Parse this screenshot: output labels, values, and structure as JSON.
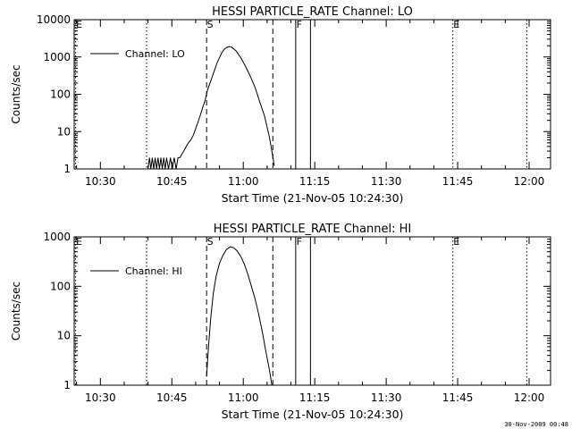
{
  "footer_timestamp": "30-Nov-2009 00:48",
  "chart_data": [
    {
      "type": "line",
      "title": "HESSI PARTICLE_RATE Channel: LO",
      "xlabel": "Start Time (21-Nov-05 10:24:30)",
      "ylabel": "Counts/sec",
      "y_scale": "log",
      "xlim_minutes": [
        0,
        100
      ],
      "ylim": [
        1,
        10000
      ],
      "x_ticks": [
        {
          "label": "10:30",
          "value": 5.5
        },
        {
          "label": "10:45",
          "value": 20.5
        },
        {
          "label": "11:00",
          "value": 35.5
        },
        {
          "label": "11:15",
          "value": 50.5
        },
        {
          "label": "11:30",
          "value": 65.5
        },
        {
          "label": "11:45",
          "value": 80.5
        },
        {
          "label": "12:00",
          "value": 95.5
        }
      ],
      "y_ticks": [
        {
          "label": "1",
          "value": 1
        },
        {
          "label": "10",
          "value": 10
        },
        {
          "label": "100",
          "value": 100
        },
        {
          "label": "1000",
          "value": 1000
        },
        {
          "label": "10000",
          "value": 10000
        }
      ],
      "legend": {
        "label": "Channel: LO",
        "placement": "top-left"
      },
      "markers": [
        {
          "label": "E",
          "x": 0.3,
          "style": "dotted"
        },
        {
          "label": "",
          "x": 15.2,
          "style": "dotted"
        },
        {
          "label": "S",
          "x": 27.8,
          "style": "dashed"
        },
        {
          "label": "",
          "x": 41.7,
          "style": "dashed"
        },
        {
          "label": "F",
          "x": 46.5,
          "style": "solid"
        },
        {
          "label": "",
          "x": 49.6,
          "style": "solid"
        },
        {
          "label": "E",
          "x": 79.5,
          "style": "dotted"
        },
        {
          "label": "",
          "x": 95.0,
          "style": "dotted"
        }
      ],
      "series": [
        {
          "name": "Channel: LO",
          "x": [
            15.5,
            15.8,
            16.1,
            16.4,
            16.7,
            17.0,
            17.3,
            17.6,
            17.9,
            18.2,
            18.5,
            18.8,
            19.1,
            19.4,
            19.8,
            20.2,
            20.6,
            21.0,
            21.4,
            21.8,
            22.2,
            22.6,
            23.0,
            23.5,
            24.0,
            24.5,
            25.0,
            25.5,
            26.0,
            26.5,
            27.0,
            27.5,
            28.0,
            29.0,
            30.0,
            31.0,
            31.5,
            32.0,
            32.5,
            33.0,
            34.0,
            35.0,
            36.0,
            37.0,
            38.0,
            39.0,
            40.0,
            41.0,
            41.5,
            42.0
          ],
          "y": [
            1,
            2,
            1,
            2,
            1,
            2,
            1,
            2,
            1,
            2,
            1,
            2,
            1,
            2,
            1,
            2,
            1,
            2,
            1,
            2,
            2,
            2.5,
            3,
            4,
            5,
            6,
            8,
            12,
            18,
            28,
            45,
            70,
            130,
            300,
            700,
            1300,
            1600,
            1800,
            1900,
            1850,
            1450,
            950,
            550,
            300,
            150,
            60,
            25,
            7,
            3,
            1.2
          ]
        }
      ]
    },
    {
      "type": "line",
      "title": "HESSI PARTICLE_RATE Channel: HI",
      "xlabel": "Start Time (21-Nov-05 10:24:30)",
      "ylabel": "Counts/sec",
      "y_scale": "log",
      "xlim_minutes": [
        0,
        100
      ],
      "ylim": [
        1,
        1000
      ],
      "x_ticks": [
        {
          "label": "10:30",
          "value": 5.5
        },
        {
          "label": "10:45",
          "value": 20.5
        },
        {
          "label": "11:00",
          "value": 35.5
        },
        {
          "label": "11:15",
          "value": 50.5
        },
        {
          "label": "11:30",
          "value": 65.5
        },
        {
          "label": "11:45",
          "value": 80.5
        },
        {
          "label": "12:00",
          "value": 95.5
        }
      ],
      "y_ticks": [
        {
          "label": "1",
          "value": 1
        },
        {
          "label": "10",
          "value": 10
        },
        {
          "label": "100",
          "value": 100
        },
        {
          "label": "1000",
          "value": 1000
        }
      ],
      "legend": {
        "label": "Channel: HI",
        "placement": "top-left"
      },
      "markers": [
        {
          "label": "E",
          "x": 0.3,
          "style": "dotted"
        },
        {
          "label": "",
          "x": 15.2,
          "style": "dotted"
        },
        {
          "label": "S",
          "x": 27.8,
          "style": "dashed"
        },
        {
          "label": "",
          "x": 41.7,
          "style": "dashed"
        },
        {
          "label": "F",
          "x": 46.5,
          "style": "solid"
        },
        {
          "label": "",
          "x": 49.6,
          "style": "solid"
        },
        {
          "label": "E",
          "x": 79.5,
          "style": "dotted"
        },
        {
          "label": "",
          "x": 95.0,
          "style": "dotted"
        }
      ],
      "series": [
        {
          "name": "Channel: HI",
          "x": [
            27.8,
            28.0,
            28.3,
            28.7,
            29.2,
            29.8,
            30.5,
            31.2,
            32.0,
            32.8,
            33.5,
            34.2,
            35.0,
            35.8,
            36.5,
            37.2,
            38.0,
            38.7,
            39.5,
            40.2,
            41.0,
            41.5
          ],
          "y": [
            1.5,
            3,
            8,
            25,
            70,
            160,
            290,
            420,
            560,
            630,
            600,
            520,
            400,
            270,
            170,
            100,
            55,
            28,
            12,
            5,
            2,
            1
          ]
        }
      ]
    }
  ]
}
